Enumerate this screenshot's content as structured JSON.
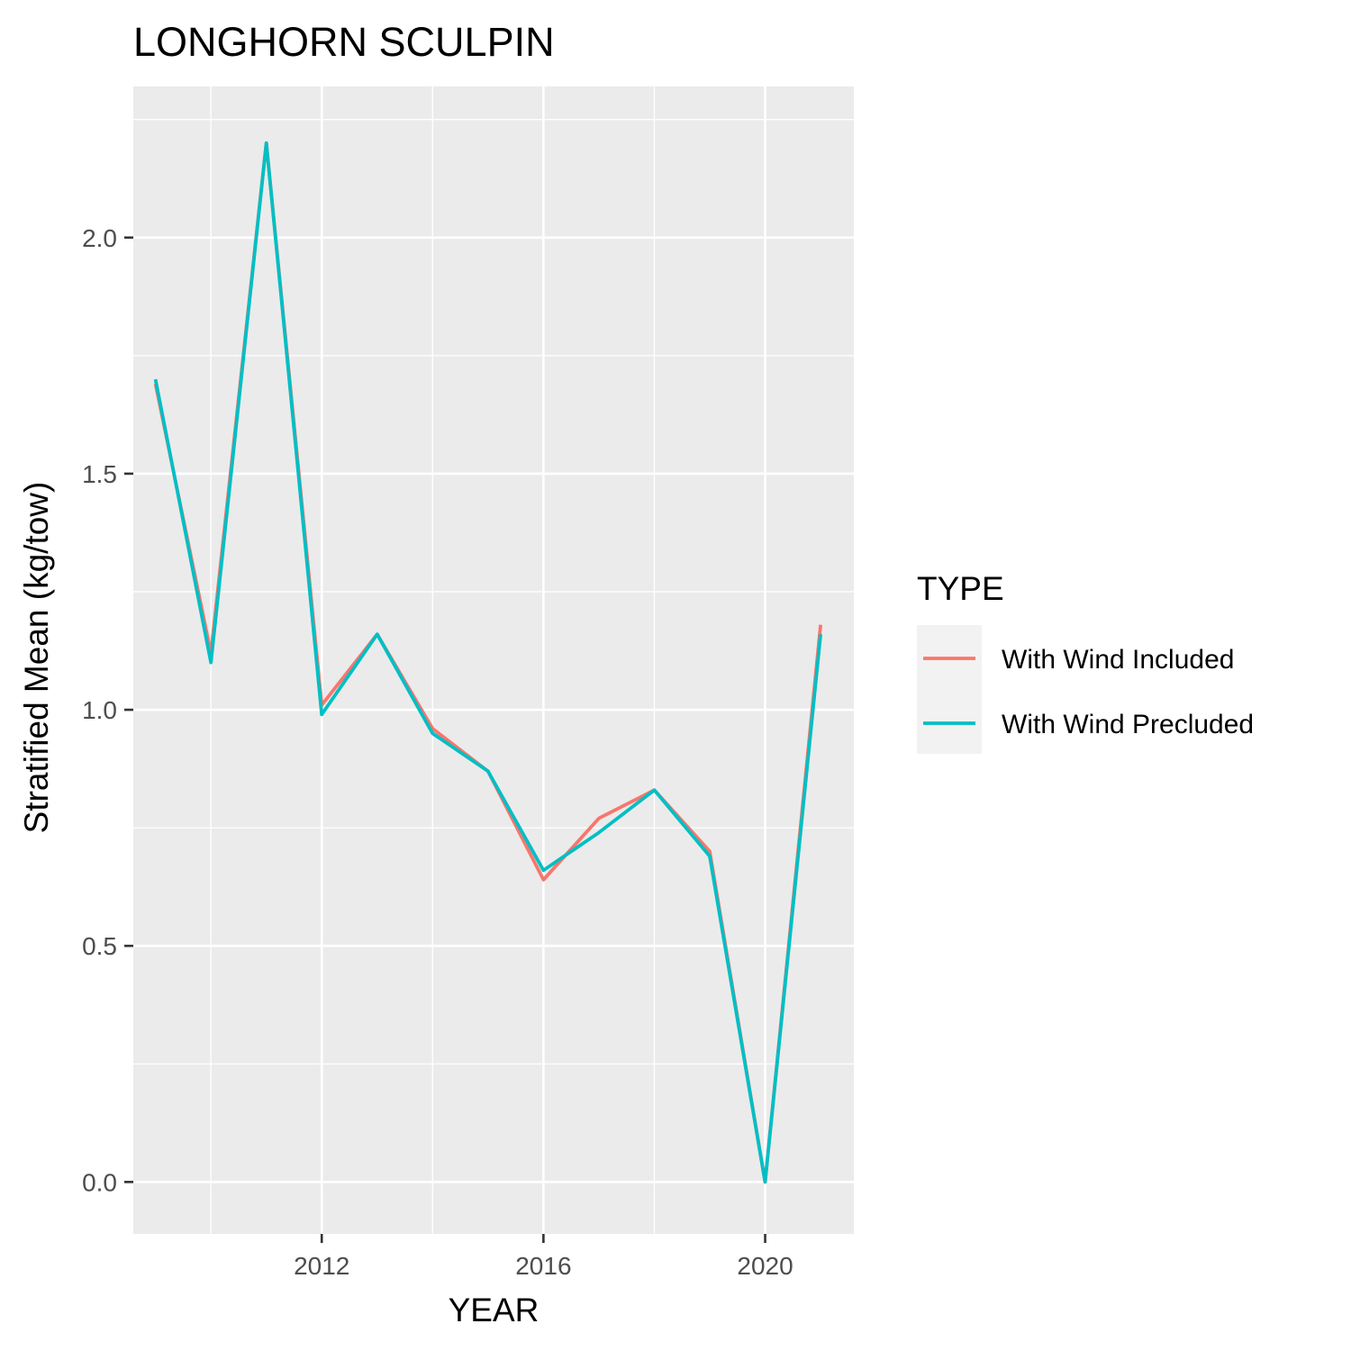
{
  "chart_data": {
    "type": "line",
    "title": "LONGHORN SCULPIN",
    "xlabel": "YEAR",
    "ylabel": "Stratified Mean (kg/tow)",
    "xlim": [
      2008.6,
      2021.6
    ],
    "ylim": [
      -0.11,
      2.32
    ],
    "x_ticks": [
      2012,
      2016,
      2020
    ],
    "x_tick_labels": [
      "2012",
      "2016",
      "2020"
    ],
    "y_ticks": [
      0,
      0.5,
      1,
      1.5,
      2
    ],
    "y_tick_labels": [
      "0.0",
      "0.5",
      "1.0",
      "1.5",
      "2.0"
    ],
    "grid": true,
    "legend": {
      "title": "TYPE",
      "position": "right"
    },
    "x": [
      2009,
      2010,
      2011,
      2012,
      2013,
      2014,
      2015,
      2016,
      2017,
      2018,
      2019,
      2020,
      2021
    ],
    "series": [
      {
        "name": "With Wind Included",
        "color": "#F8766D",
        "values": [
          1.69,
          1.12,
          2.2,
          1.01,
          1.16,
          0.96,
          0.87,
          0.64,
          0.77,
          0.83,
          0.7,
          0.0,
          1.18
        ]
      },
      {
        "name": "With Wind Precluded",
        "color": "#00BFC4",
        "values": [
          1.7,
          1.1,
          2.2,
          0.99,
          1.16,
          0.95,
          0.87,
          0.66,
          0.74,
          0.83,
          0.69,
          0.0,
          1.16
        ]
      }
    ]
  },
  "colors": {
    "panel_background": "#EBEBEB",
    "grid_line": "#FFFFFF",
    "legend_key_background": "#F2F2F2",
    "tick_mark": "#333333"
  }
}
